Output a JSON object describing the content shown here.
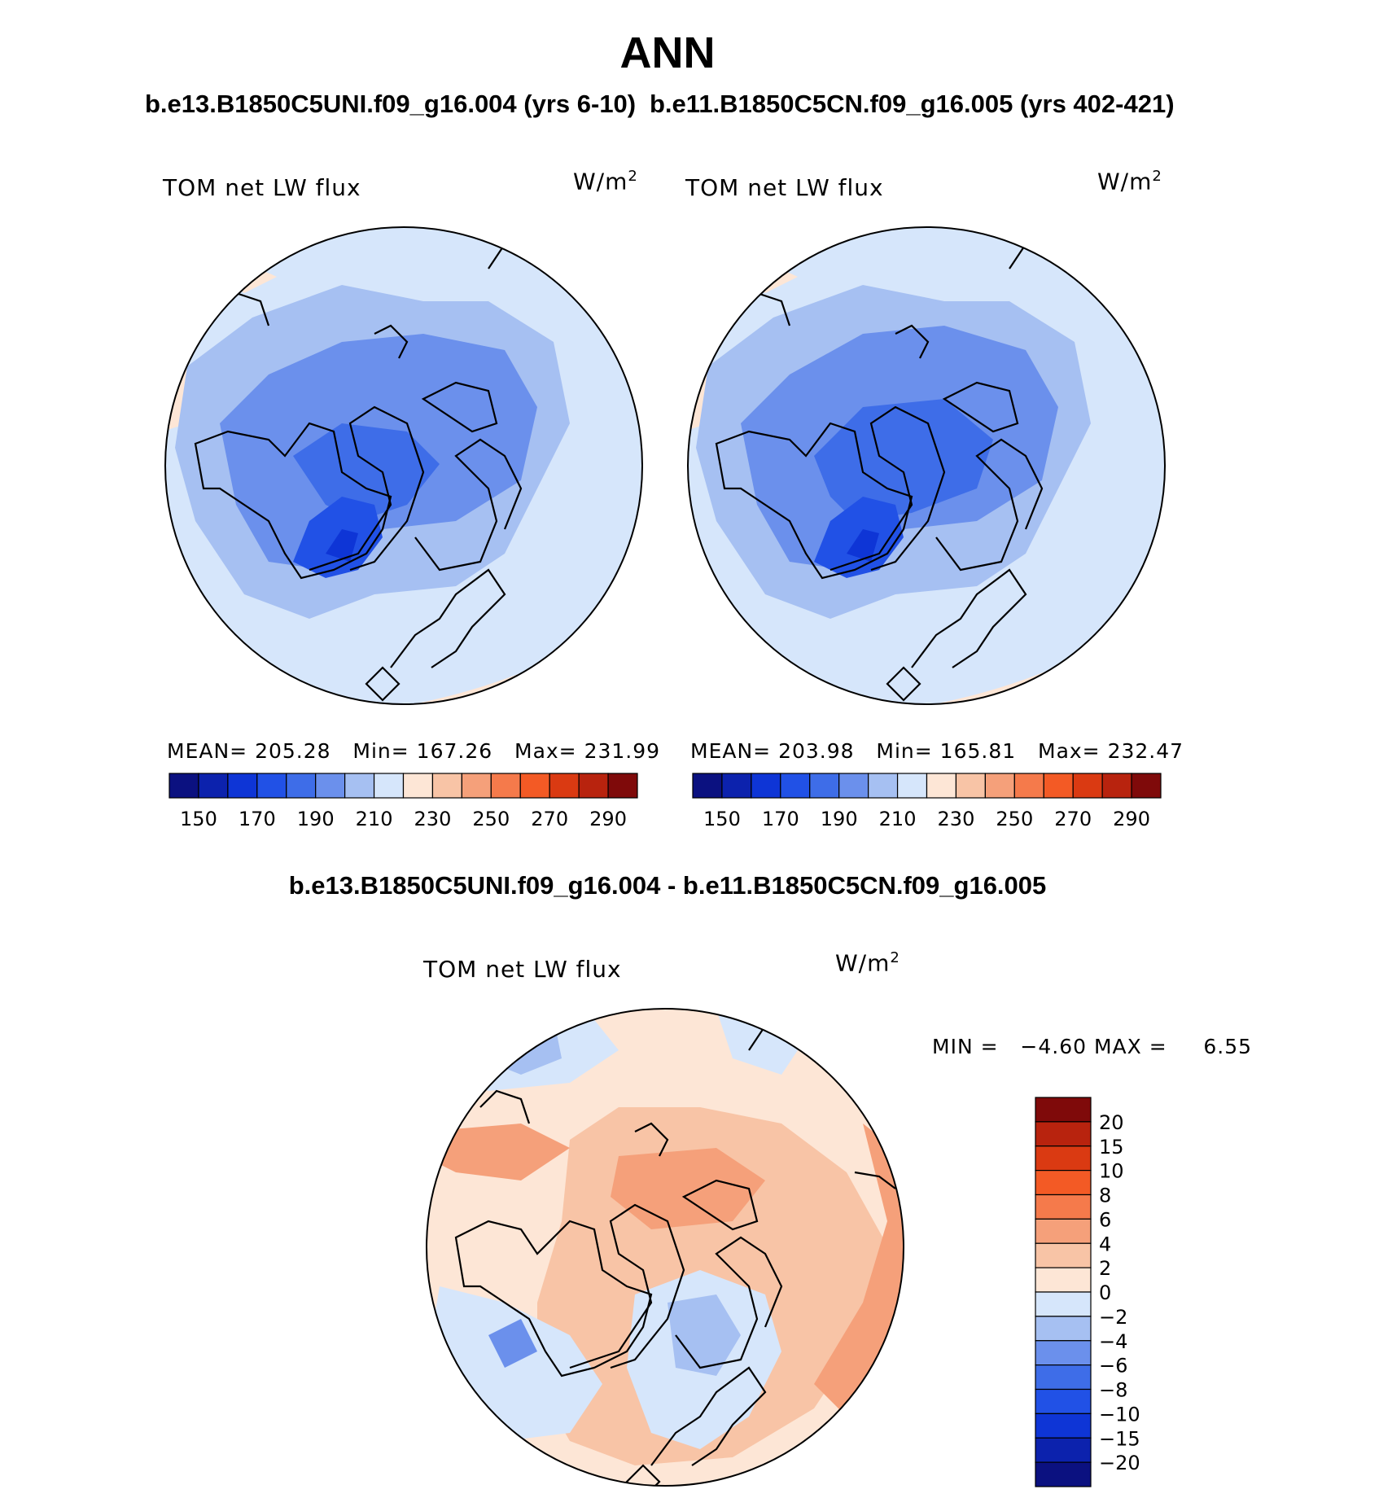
{
  "figure": {
    "title": "ANN",
    "panel_left_title": "b.e13.B1850C5UNI.f09_g16.004 (yrs 6-10)",
    "panel_right_title": "b.e11.B1850C5CN.f09_g16.005 (yrs 402-421)",
    "diff_title": "b.e13.B1850C5UNI.f09_g16.004 - b.e11.B1850C5CN.f09_g16.005"
  },
  "chart_data": [
    {
      "type": "heatmap",
      "projection": "north polar stereographic",
      "variable": "TOM net LW flux",
      "units": "W/m",
      "units_superscript": "2",
      "stats": {
        "mean_label": "MEAN=",
        "mean": "205.28",
        "min_label": "Min=",
        "min": "167.26",
        "max_label": "Max=",
        "max": "231.99"
      },
      "colorbar": {
        "orientation": "horizontal",
        "levels": [
          150,
          160,
          170,
          180,
          190,
          200,
          210,
          220,
          230,
          240,
          250,
          260,
          270,
          280,
          290
        ],
        "labels": [
          "150",
          "170",
          "190",
          "210",
          "230",
          "250",
          "270",
          "290"
        ],
        "colors": [
          "#0b1180",
          "#0c22ad",
          "#0e35d6",
          "#2151e6",
          "#3e6de8",
          "#6b90ec",
          "#a6c0f2",
          "#d6e6fb",
          "#fde6d6",
          "#f8c4a6",
          "#f5a07a",
          "#f57a4b",
          "#f35a25",
          "#da3a12",
          "#b8230e",
          "#7f0a0a"
        ]
      }
    },
    {
      "type": "heatmap",
      "projection": "north polar stereographic",
      "variable": "TOM net LW flux",
      "units": "W/m",
      "units_superscript": "2",
      "stats": {
        "mean_label": "MEAN=",
        "mean": "203.98",
        "min_label": "Min=",
        "min": "165.81",
        "max_label": "Max=",
        "max": "232.47"
      },
      "colorbar": {
        "orientation": "horizontal",
        "levels": [
          150,
          160,
          170,
          180,
          190,
          200,
          210,
          220,
          230,
          240,
          250,
          260,
          270,
          280,
          290
        ],
        "labels": [
          "150",
          "170",
          "190",
          "210",
          "230",
          "250",
          "270",
          "290"
        ],
        "colors": [
          "#0b1180",
          "#0c22ad",
          "#0e35d6",
          "#2151e6",
          "#3e6de8",
          "#6b90ec",
          "#a6c0f2",
          "#d6e6fb",
          "#fde6d6",
          "#f8c4a6",
          "#f5a07a",
          "#f57a4b",
          "#f35a25",
          "#da3a12",
          "#b8230e",
          "#7f0a0a"
        ]
      }
    },
    {
      "type": "heatmap",
      "projection": "north polar stereographic",
      "variable": "TOM net LW flux",
      "units": "W/m",
      "units_superscript": "2",
      "stats": {
        "min_label": "MIN =",
        "min": "−4.60",
        "max_label": "MAX =",
        "max": "6.55"
      },
      "colorbar": {
        "orientation": "vertical",
        "levels": [
          20,
          15,
          10,
          8,
          6,
          4,
          2,
          0,
          -2,
          -4,
          -6,
          -8,
          -10,
          -15,
          -20
        ],
        "labels": [
          "20",
          "15",
          "10",
          "8",
          "6",
          "4",
          "2",
          "0",
          "−2",
          "−4",
          "−6",
          "−8",
          "−10",
          "−15",
          "−20"
        ],
        "colors": [
          "#7f0a0a",
          "#b8230e",
          "#da3a12",
          "#f35a25",
          "#f57a4b",
          "#f5a07a",
          "#f8c4a6",
          "#fde6d6",
          "#d6e6fb",
          "#a6c0f2",
          "#6b90ec",
          "#3e6de8",
          "#2151e6",
          "#0e35d6",
          "#0c22ad",
          "#0b1180"
        ]
      }
    }
  ]
}
